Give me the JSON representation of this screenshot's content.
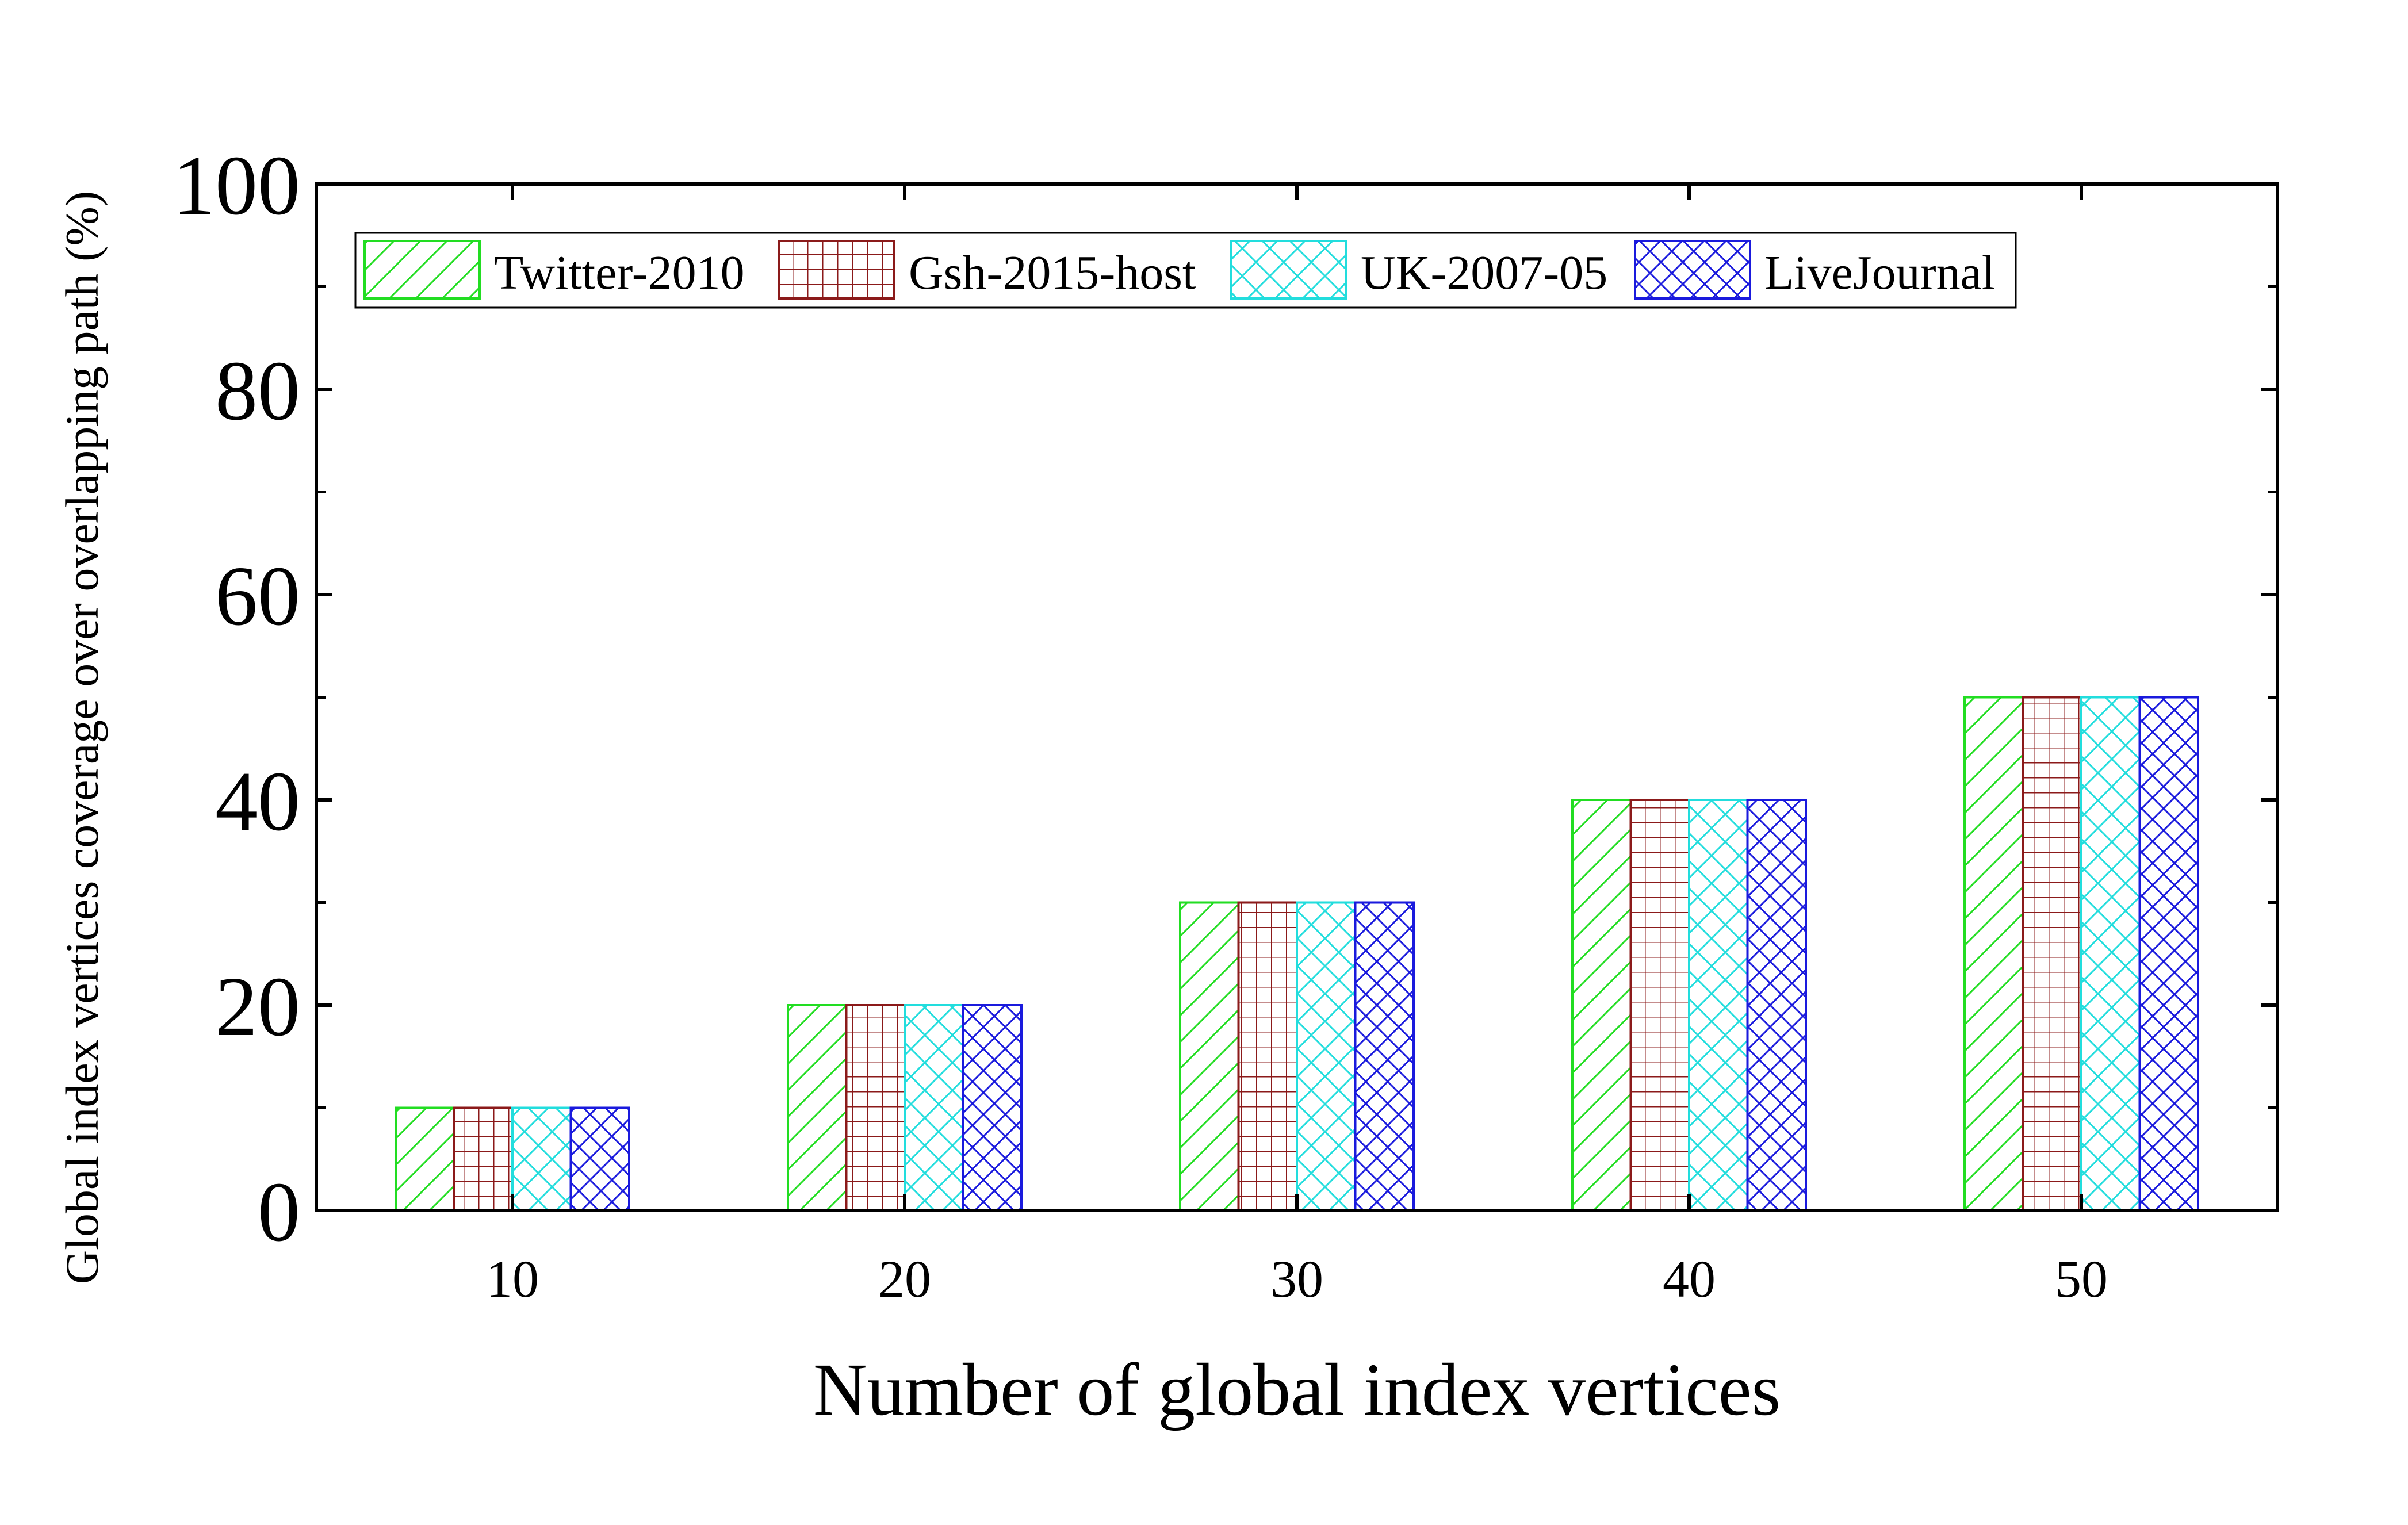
{
  "chart_data": {
    "type": "bar",
    "title": "",
    "xlabel": "Number of global index vertices",
    "ylabel": "Global index vertices coverage over overlapping path (%)",
    "categories": [
      "10",
      "20",
      "30",
      "40",
      "50"
    ],
    "ylim": [
      0,
      100
    ],
    "yticks": [
      "0",
      "20",
      "40",
      "60",
      "80",
      "100"
    ],
    "grid": false,
    "legend_position": "top-left",
    "series": [
      {
        "name": "Twitter-2010",
        "values": [
          10,
          20,
          30,
          40,
          50
        ],
        "color": "#22dd22",
        "pattern": "diagonal"
      },
      {
        "name": "Gsh-2015-host",
        "values": [
          10,
          20,
          30,
          40,
          50
        ],
        "color": "#8b1a1a",
        "pattern": "grid"
      },
      {
        "name": "UK-2007-05",
        "values": [
          10,
          20,
          30,
          40,
          50
        ],
        "color": "#22dddd",
        "pattern": "crosshatch"
      },
      {
        "name": "LiveJournal",
        "values": [
          10,
          20,
          30,
          40,
          50
        ],
        "color": "#1a1add",
        "pattern": "crosshatch-dense"
      }
    ]
  }
}
